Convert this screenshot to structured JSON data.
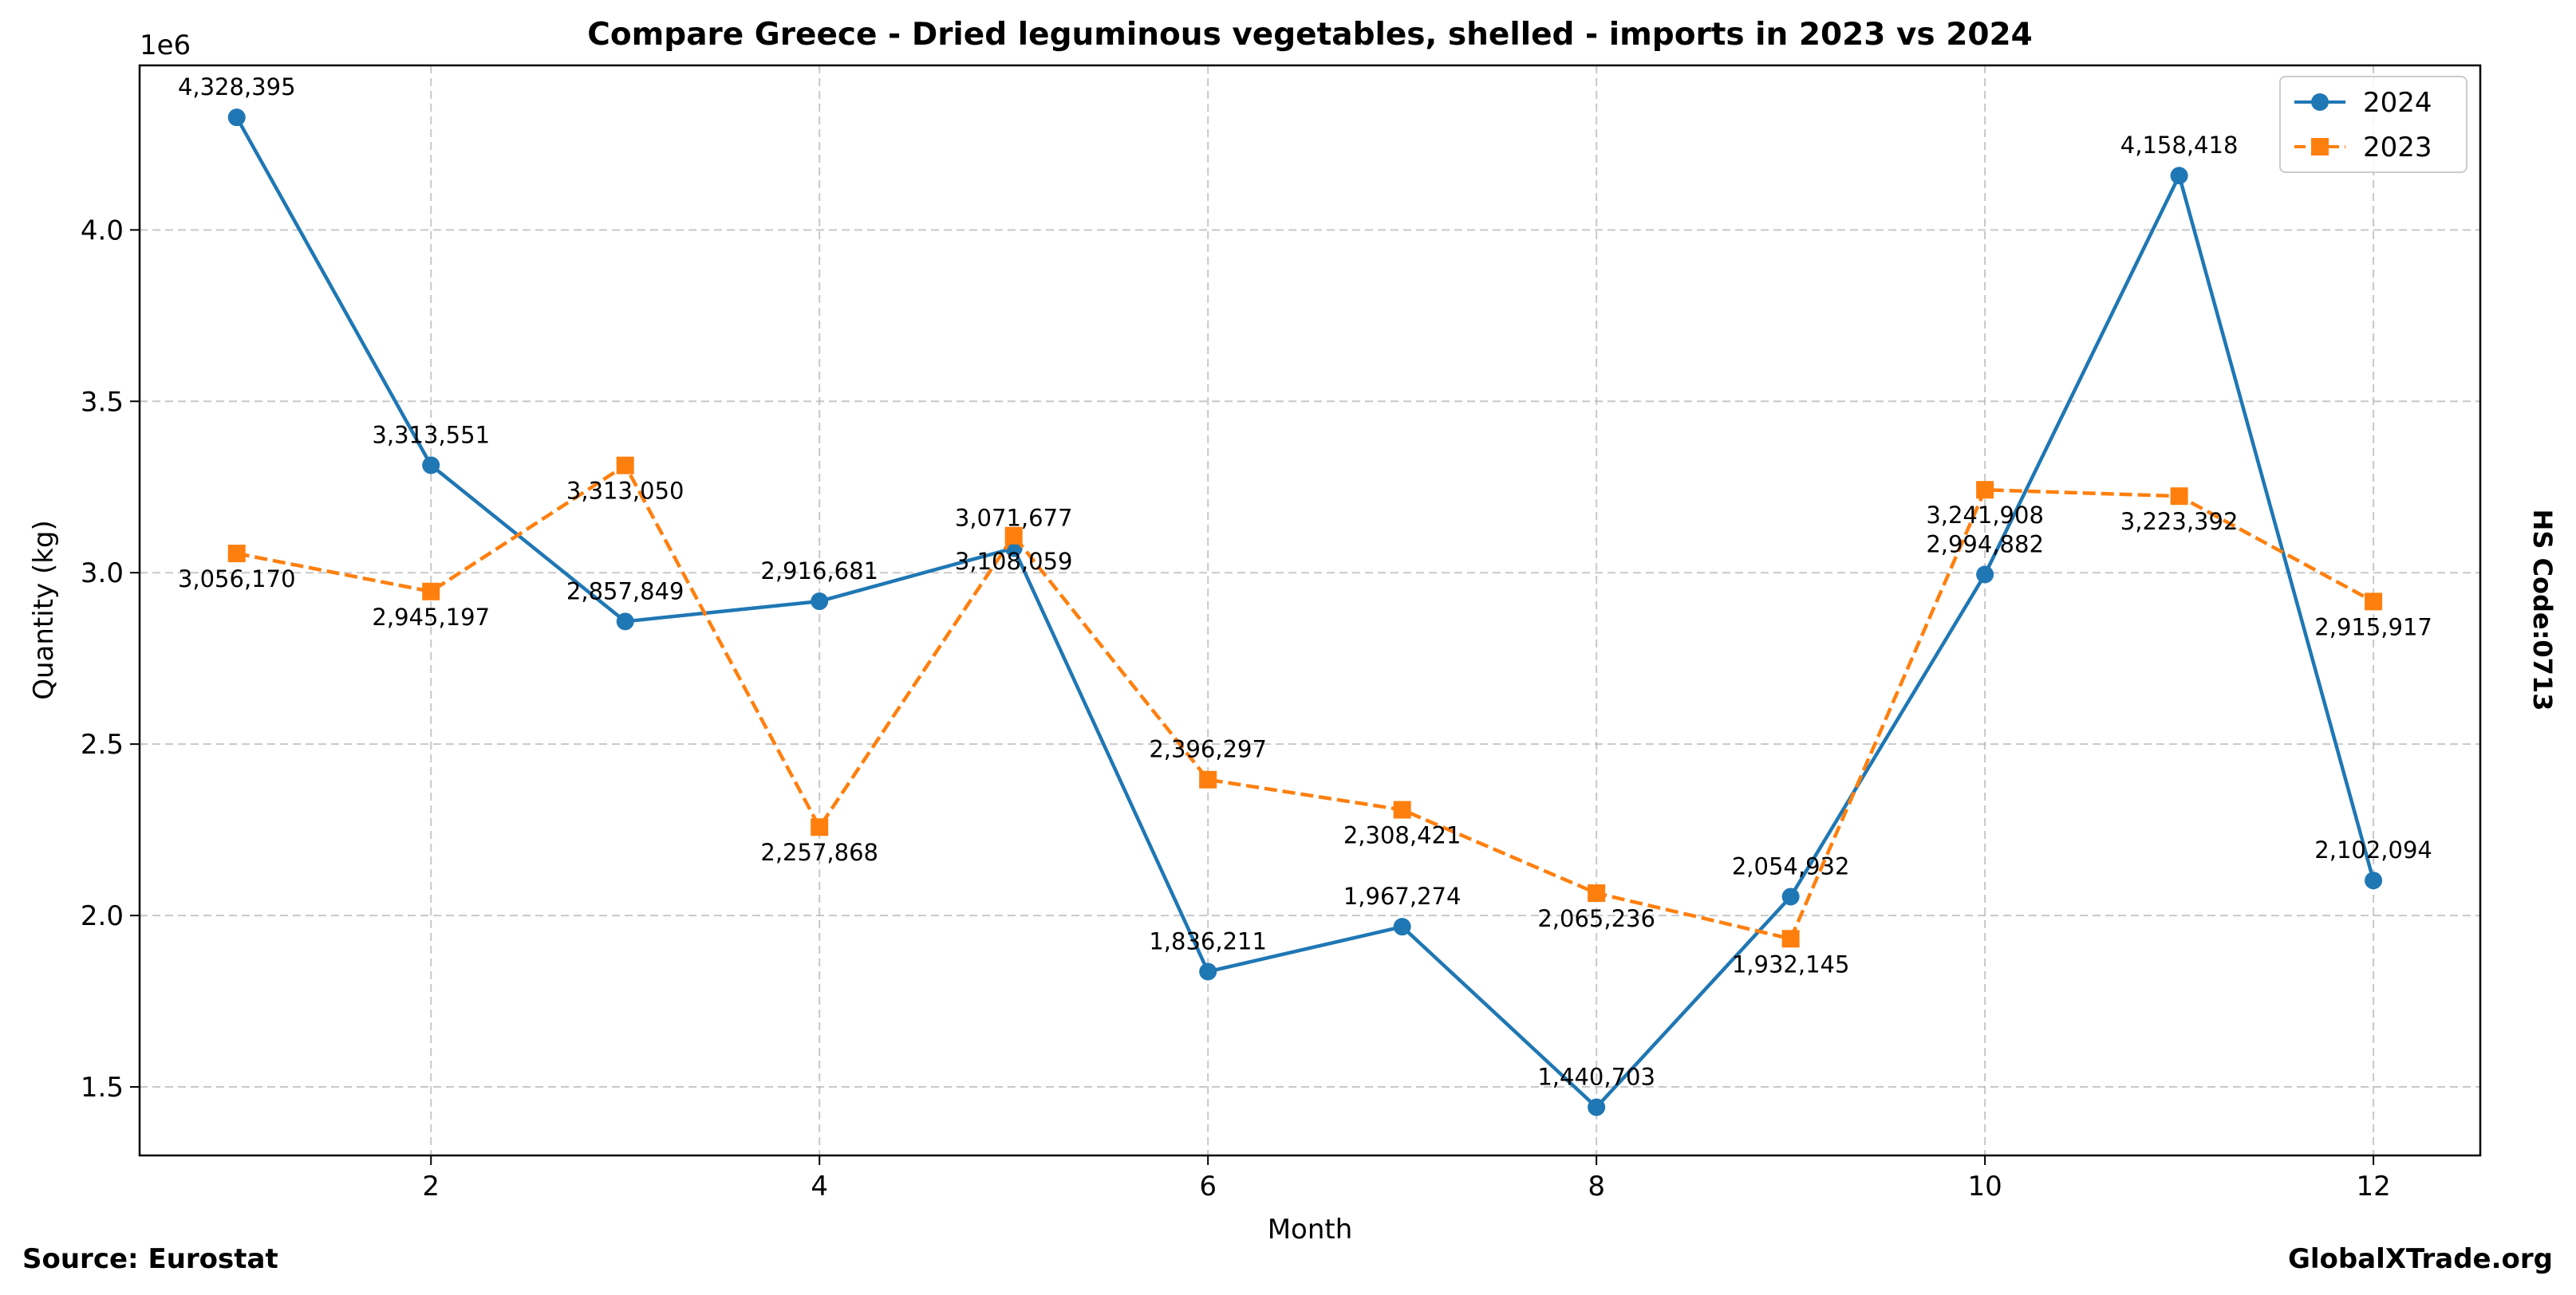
{
  "chart_data": {
    "type": "line",
    "title": "Compare Greece - Dried leguminous vegetables, shelled - imports in 2023 vs 2024",
    "xlabel": "Month",
    "ylabel": "Quantity (kg)",
    "y_offset_label": "1e6",
    "y_scale": 1000000,
    "xlim": [
      0.5,
      12.55
    ],
    "ylim": [
      1.3,
      4.48
    ],
    "x_ticks": [
      2,
      4,
      6,
      8,
      10,
      12
    ],
    "x_tick_labels": [
      "2",
      "4",
      "6",
      "8",
      "10",
      "12"
    ],
    "y_ticks": [
      1.5,
      2.0,
      2.5,
      3.0,
      3.5,
      4.0
    ],
    "y_tick_labels": [
      "1.5",
      "2.0",
      "2.5",
      "3.0",
      "3.5",
      "4.0"
    ],
    "grid": true,
    "legend_position": "top-right",
    "x": [
      1,
      2,
      3,
      4,
      5,
      6,
      7,
      8,
      9,
      10,
      11,
      12
    ],
    "series": [
      {
        "name": "2024",
        "color": "#1f77b4",
        "line_style": "solid",
        "marker": "circle",
        "values": [
          4328395,
          3313551,
          2857849,
          2916681,
          3071677,
          1836211,
          1967274,
          1440703,
          2054932,
          2994882,
          4158418,
          2102094
        ],
        "labels": [
          "4,328,395",
          "3,313,551",
          "2,857,849",
          "2,916,681",
          "3,071,677",
          "1,836,211",
          "1,967,274",
          "1,440,703",
          "2,054,932",
          "2,994,882",
          "4,158,418",
          "2,102,094"
        ]
      },
      {
        "name": "2023",
        "color": "#ff7f0e",
        "line_style": "dashed",
        "marker": "square",
        "values": [
          3056170,
          2945197,
          3313050,
          2257868,
          3108059,
          2396297,
          2308421,
          2065236,
          1932145,
          3241908,
          3223392,
          2915917
        ],
        "labels": [
          "3,056,170",
          "2,945,197",
          "3,313,050",
          "2,257,868",
          "3,108,059",
          "2,396,297",
          "2,308,421",
          "2,065,236",
          "1,932,145",
          "3,241,908",
          "3,223,392",
          "2,915,917"
        ]
      }
    ]
  },
  "footer": {
    "source": "Source: Eurostat",
    "site": "GlobalXTrade.org",
    "side_label": "HS Code:0713"
  }
}
